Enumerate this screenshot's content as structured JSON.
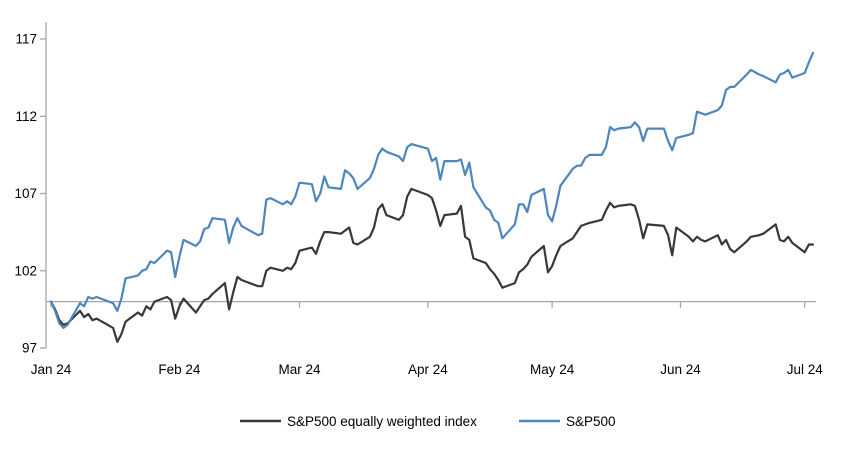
{
  "chart_data": {
    "type": "line",
    "title": "",
    "xlabel": "",
    "ylabel": "",
    "grid": false,
    "legend_position": "bottom-center",
    "y_axis": {
      "min": 97,
      "max": 117,
      "ticks": [
        97,
        102,
        107,
        112,
        117
      ],
      "baseline_value": 100
    },
    "x_axis": {
      "tick_labels": [
        "Jan 24",
        "Feb 24",
        "Mar 24",
        "Apr 24",
        "May 24",
        "Jun 24",
        "Jul 24"
      ],
      "tick_dates": [
        "2024-01-01",
        "2024-02-01",
        "2024-03-01",
        "2024-04-01",
        "2024-05-01",
        "2024-06-01",
        "2024-07-01"
      ],
      "range": [
        "2023-12-31",
        "2024-07-03"
      ]
    },
    "legend": [
      {
        "label": "S&P500 equally weighted index",
        "color": "#383838"
      },
      {
        "label": "S&P500",
        "color": "#4d86bf"
      }
    ],
    "dates": [
      "2024-01-01",
      "2024-01-02",
      "2024-01-03",
      "2024-01-04",
      "2024-01-05",
      "2024-01-08",
      "2024-01-09",
      "2024-01-10",
      "2024-01-11",
      "2024-01-12",
      "2024-01-16",
      "2024-01-17",
      "2024-01-18",
      "2024-01-19",
      "2024-01-22",
      "2024-01-23",
      "2024-01-24",
      "2024-01-25",
      "2024-01-26",
      "2024-01-29",
      "2024-01-30",
      "2024-01-31",
      "2024-02-01",
      "2024-02-02",
      "2024-02-05",
      "2024-02-06",
      "2024-02-07",
      "2024-02-08",
      "2024-02-09",
      "2024-02-12",
      "2024-02-13",
      "2024-02-14",
      "2024-02-15",
      "2024-02-16",
      "2024-02-20",
      "2024-02-21",
      "2024-02-22",
      "2024-02-23",
      "2024-02-26",
      "2024-02-27",
      "2024-02-28",
      "2024-02-29",
      "2024-03-01",
      "2024-03-04",
      "2024-03-05",
      "2024-03-06",
      "2024-03-07",
      "2024-03-08",
      "2024-03-11",
      "2024-03-12",
      "2024-03-13",
      "2024-03-14",
      "2024-03-15",
      "2024-03-18",
      "2024-03-19",
      "2024-03-20",
      "2024-03-21",
      "2024-03-22",
      "2024-03-25",
      "2024-03-26",
      "2024-03-27",
      "2024-03-28",
      "2024-04-01",
      "2024-04-02",
      "2024-04-03",
      "2024-04-04",
      "2024-04-05",
      "2024-04-08",
      "2024-04-09",
      "2024-04-10",
      "2024-04-11",
      "2024-04-12",
      "2024-04-15",
      "2024-04-16",
      "2024-04-17",
      "2024-04-18",
      "2024-04-19",
      "2024-04-22",
      "2024-04-23",
      "2024-04-24",
      "2024-04-25",
      "2024-04-26",
      "2024-04-29",
      "2024-04-30",
      "2024-05-01",
      "2024-05-02",
      "2024-05-03",
      "2024-05-06",
      "2024-05-07",
      "2024-05-08",
      "2024-05-09",
      "2024-05-10",
      "2024-05-13",
      "2024-05-14",
      "2024-05-15",
      "2024-05-16",
      "2024-05-17",
      "2024-05-20",
      "2024-05-21",
      "2024-05-22",
      "2024-05-23",
      "2024-05-24",
      "2024-05-28",
      "2024-05-29",
      "2024-05-30",
      "2024-05-31",
      "2024-06-03",
      "2024-06-04",
      "2024-06-05",
      "2024-06-06",
      "2024-06-07",
      "2024-06-10",
      "2024-06-11",
      "2024-06-12",
      "2024-06-13",
      "2024-06-14",
      "2024-06-17",
      "2024-06-18",
      "2024-06-20",
      "2024-06-21",
      "2024-06-24",
      "2024-06-25",
      "2024-06-26",
      "2024-06-27",
      "2024-06-28",
      "2024-07-01",
      "2024-07-02",
      "2024-07-03"
    ],
    "series": [
      {
        "name": "S&P500 equally weighted index",
        "color": "#383838",
        "values": [
          100.0,
          99.5,
          98.8,
          98.5,
          98.6,
          99.4,
          99.0,
          99.2,
          98.8,
          98.9,
          98.3,
          97.4,
          97.9,
          98.7,
          99.3,
          99.1,
          99.7,
          99.5,
          100.0,
          100.3,
          100.1,
          98.9,
          99.7,
          100.2,
          99.3,
          99.7,
          100.1,
          100.2,
          100.5,
          101.2,
          99.5,
          100.6,
          101.6,
          101.4,
          101.0,
          101.0,
          102.0,
          102.2,
          102.0,
          102.2,
          102.1,
          102.5,
          103.3,
          103.5,
          103.1,
          103.9,
          104.5,
          104.5,
          104.4,
          104.6,
          104.8,
          103.8,
          103.7,
          104.2,
          104.8,
          106.0,
          106.3,
          105.6,
          105.3,
          105.6,
          106.8,
          107.3,
          106.9,
          106.7,
          105.9,
          104.9,
          105.6,
          105.7,
          106.2,
          104.2,
          104.0,
          102.8,
          102.5,
          102.1,
          101.8,
          101.4,
          100.9,
          101.2,
          101.9,
          102.1,
          102.4,
          102.9,
          103.6,
          101.9,
          102.3,
          103.0,
          103.6,
          104.1,
          104.5,
          104.9,
          105.0,
          105.1,
          105.3,
          105.9,
          106.4,
          106.1,
          106.2,
          106.3,
          106.2,
          105.3,
          104.1,
          105.0,
          104.9,
          104.3,
          103.0,
          104.8,
          104.2,
          103.9,
          104.2,
          104.0,
          103.9,
          104.3,
          103.7,
          104.0,
          103.4,
          103.2,
          103.9,
          104.2,
          104.3,
          104.4,
          105.0,
          104.0,
          103.9,
          104.2,
          103.8,
          103.2,
          103.7,
          103.7
        ]
      },
      {
        "name": "S&P500",
        "color": "#4d86bf",
        "values": [
          100.0,
          99.4,
          98.6,
          98.3,
          98.5,
          99.9,
          99.7,
          100.3,
          100.2,
          100.3,
          99.9,
          99.4,
          100.2,
          101.5,
          101.7,
          102.0,
          102.1,
          102.6,
          102.5,
          103.3,
          103.2,
          101.6,
          102.9,
          104.0,
          103.6,
          103.9,
          104.7,
          104.8,
          105.4,
          105.3,
          103.8,
          104.8,
          105.4,
          104.9,
          104.3,
          104.4,
          106.6,
          106.7,
          106.3,
          106.5,
          106.3,
          106.8,
          107.7,
          107.6,
          106.5,
          107.0,
          108.1,
          107.4,
          107.3,
          108.5,
          108.3,
          108.0,
          107.3,
          108.0,
          108.6,
          109.5,
          109.9,
          109.7,
          109.4,
          109.1,
          110.0,
          110.2,
          109.9,
          109.1,
          109.3,
          107.9,
          109.1,
          109.1,
          109.2,
          108.2,
          109.0,
          107.4,
          106.1,
          105.9,
          105.3,
          105.1,
          104.1,
          105.0,
          106.3,
          106.3,
          105.8,
          106.9,
          107.3,
          105.6,
          105.2,
          106.2,
          107.5,
          108.6,
          108.8,
          108.8,
          109.3,
          109.5,
          109.5,
          110.0,
          111.3,
          111.1,
          111.2,
          111.3,
          111.6,
          111.3,
          110.4,
          111.2,
          111.2,
          110.4,
          109.8,
          110.6,
          110.8,
          110.9,
          112.3,
          112.2,
          112.1,
          112.4,
          112.7,
          113.7,
          113.9,
          113.9,
          114.7,
          115.0,
          114.7,
          114.6,
          114.2,
          114.7,
          114.8,
          115.0,
          114.5,
          114.8,
          115.5,
          116.1
        ]
      }
    ]
  },
  "colors": {
    "background": "#ffffff",
    "axis": "#a6a6a6",
    "text": "#000000",
    "equal_weight_line": "#383838",
    "sp500_line": "#4d86bf"
  }
}
